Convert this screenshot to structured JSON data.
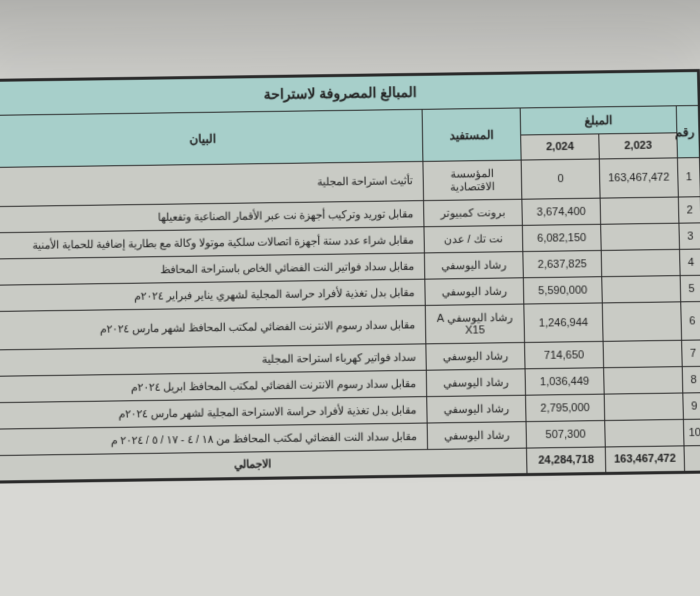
{
  "colors": {
    "page_bg": "#d8d8d4",
    "sheet_bg": "#c9cbc5",
    "header_bg": "#a7cfca",
    "border": "#2a2a2a",
    "text": "#222222"
  },
  "title": "المبالغ المصروفة لاستراحة",
  "columns": {
    "row_no": "رقم",
    "amount": "المبلغ",
    "beneficiary": "المستفيد",
    "description": "البيان",
    "year_2023": "2,023",
    "year_2024": "2,024"
  },
  "rows": [
    {
      "no": "1",
      "y2023": "163,467,472",
      "y2024": "0",
      "beneficiary": "المؤسسة الاقتصادية",
      "desc": "تأثيث استراحة المجلية"
    },
    {
      "no": "2",
      "y2023": "",
      "y2024": "3,674,400",
      "beneficiary": "برونت كمبيوتر",
      "desc": "مقابل توريد وتركيب أجهزة نت عبر الأقمار الصناعية وتفعيلها"
    },
    {
      "no": "3",
      "y2023": "",
      "y2024": "6,082,150",
      "beneficiary": "نت تك / عدن",
      "desc": "مقابل شراء عدد ستة أجهزة اتصالات سلكية موتولا وكالة مع بطارية إضافية للحماية الأمنية"
    },
    {
      "no": "4",
      "y2023": "",
      "y2024": "2,637,825",
      "beneficiary": "رشاد اليوسفي",
      "desc": "مقابل سداد فواتير النت الفضائي الخاص باستراحة المحافظ"
    },
    {
      "no": "5",
      "y2023": "",
      "y2024": "5,590,000",
      "beneficiary": "رشاد اليوسفي",
      "desc": "مقابل بدل تغذية لأفراد حراسة المجلية لشهري يناير فبراير ٢٠٢٤م"
    },
    {
      "no": "6",
      "y2023": "",
      "y2024": "1,246,944",
      "beneficiary": "رشاد اليوسفي A X15",
      "desc": "مقابل سداد رسوم الانترنت الفضائي لمكتب المحافظ لشهر مارس ٢٠٢٤م"
    },
    {
      "no": "7",
      "y2023": "",
      "y2024": "714,650",
      "beneficiary": "رشاد اليوسفي",
      "desc": "سداد فواتير كهرباء استراحة المجلية"
    },
    {
      "no": "8",
      "y2023": "",
      "y2024": "1,036,449",
      "beneficiary": "رشاد اليوسفي",
      "desc": "مقابل سداد رسوم الانترنت الفضائي لمكتب المحافظ ابريل ٢٠٢٤م"
    },
    {
      "no": "9",
      "y2023": "",
      "y2024": "2,795,000",
      "beneficiary": "رشاد اليوسفي",
      "desc": "مقابل بدل تغذية لأفراد حراسة الاستراحة المجلية لشهر مارس ٢٠٢٤م"
    },
    {
      "no": "10",
      "y2023": "",
      "y2024": "507,300",
      "beneficiary": "رشاد اليوسفي",
      "desc": "مقابل سداد النت الفضائي لمكتب المحافظ من ١٨ / ٤ - ١٧ / ٥ / ٢٠٢٤ م"
    }
  ],
  "totals": {
    "label": "الاجمالي",
    "y2023": "163,467,472",
    "y2024": "24,284,718"
  }
}
